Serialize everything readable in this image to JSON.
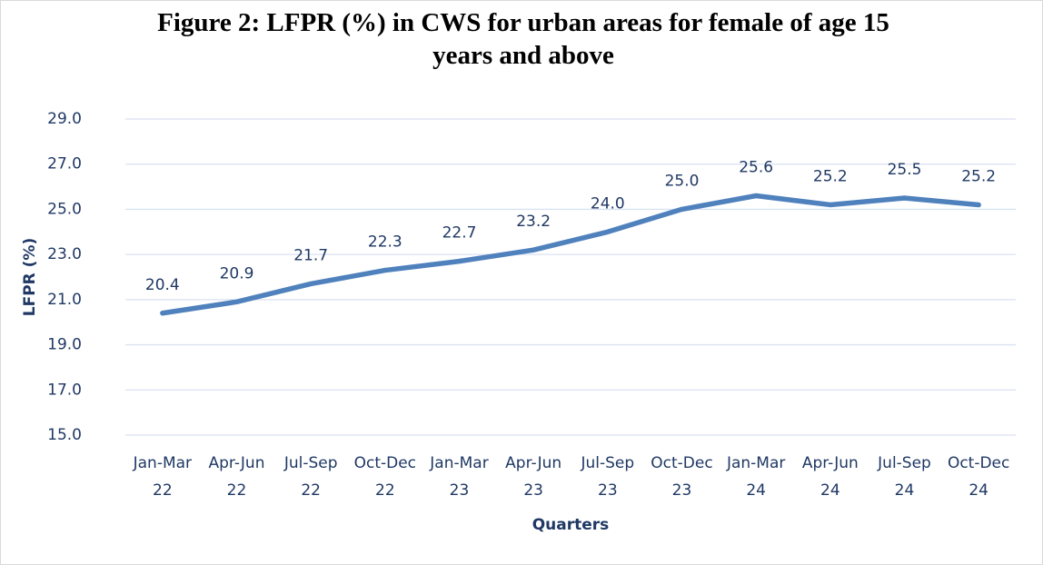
{
  "chart_data": {
    "type": "line",
    "title": "Figure 2: LFPR (%) in CWS for urban areas for female of age 15 years and above",
    "x_label": "Quarters",
    "y_label": "LFPR (%)",
    "categories": [
      "Jan-Mar 22",
      "Apr-Jun 22",
      "Jul-Sep 22",
      "Oct-Dec 22",
      "Jan-Mar 23",
      "Apr-Jun 23",
      "Jul-Sep 23",
      "Oct-Dec 23",
      "Jan-Mar 24",
      "Apr-Jun 24",
      "Jul-Sep 24",
      "Oct-Dec 24"
    ],
    "series": [
      {
        "name": "LFPR",
        "color": "#4f81bd",
        "values": [
          20.4,
          20.9,
          21.7,
          22.3,
          22.7,
          23.2,
          24.0,
          25.0,
          25.6,
          25.2,
          25.5,
          25.2
        ],
        "value_labels": [
          "20.4",
          "20.9",
          "21.7",
          "22.3",
          "22.7",
          "23.2",
          "24.0",
          "25.0",
          "25.6",
          "25.2",
          "25.5",
          "25.2"
        ]
      }
    ],
    "ylim": [
      15,
      29
    ],
    "yticks": [
      {
        "value": 15,
        "label": "15.0"
      },
      {
        "value": 17,
        "label": "17.0"
      },
      {
        "value": 19,
        "label": "19.0"
      },
      {
        "value": 21,
        "label": "21.0"
      },
      {
        "value": 23,
        "label": "23.0"
      },
      {
        "value": 25,
        "label": "25.0"
      },
      {
        "value": 27,
        "label": "27.0"
      },
      {
        "value": 29,
        "label": "29.0"
      }
    ],
    "grid": true
  }
}
